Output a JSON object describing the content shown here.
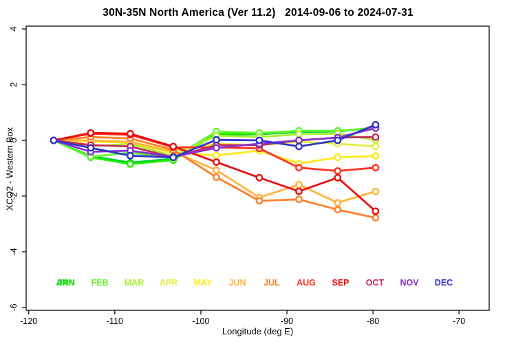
{
  "window": {
    "title": "30N-35N North America (Ver 11.2)   2014-09-06 to 2024-07-31"
  },
  "chart_data": {
    "type": "line",
    "title": "30N-35N North America (Ver 11.2)   2014-09-06 to 2024-07-31",
    "xlabel": "Longitude (deg E)",
    "ylabel": "XCO2 - Western Box",
    "xlim": [
      -120.3,
      -66.5
    ],
    "ylim": [
      -6.1,
      4.1
    ],
    "x_ticks": [
      -120,
      -110,
      -100,
      -90,
      -80,
      -70
    ],
    "y_ticks": [
      -6,
      -4,
      -2,
      0,
      2,
      4
    ],
    "grid": false,
    "legend_position": "bottom-inside",
    "marker": "open-circle",
    "axis_color": "#1a1a1a",
    "x": [
      -117.1,
      -112.8,
      -108.2,
      -103.2,
      -98.2,
      -93.2,
      -88.6,
      -84.1,
      -79.7
    ],
    "series": [
      {
        "name": "ANN",
        "color": "#00CC33",
        "legend_slot": 0,
        "values": [
          0.0,
          -0.56,
          -0.8,
          -0.66,
          0.2,
          0.22,
          0.3,
          0.32,
          0.46
        ]
      },
      {
        "name": "JAN",
        "color": "#22EE00",
        "legend_slot": 0,
        "values": [
          0.0,
          -0.61,
          -0.85,
          -0.71,
          0.24,
          0.24,
          0.34,
          0.34,
          0.44
        ]
      },
      {
        "name": "FEB",
        "color": "#66F533",
        "legend_slot": 1,
        "values": [
          0.0,
          -0.59,
          -0.44,
          -0.63,
          0.32,
          0.27,
          0.34,
          0.34,
          0.44
        ]
      },
      {
        "name": "MAR",
        "color": "#AAEE33",
        "legend_slot": 2,
        "values": [
          0.0,
          -0.22,
          -0.12,
          -0.56,
          0.17,
          0.12,
          0.22,
          0.24,
          0.02
        ]
      },
      {
        "name": "APR",
        "color": "#E2EE44",
        "legend_slot": 3,
        "values": [
          0.0,
          -0.05,
          -0.07,
          -0.39,
          -0.12,
          -0.17,
          -0.05,
          -0.12,
          -0.22
        ]
      },
      {
        "name": "MAY",
        "color": "#FFE81A",
        "legend_slot": 4,
        "values": [
          0.0,
          -0.05,
          -0.07,
          -0.46,
          -0.54,
          -0.37,
          -0.83,
          -0.61,
          -0.56
        ]
      },
      {
        "name": "JUN",
        "color": "#FFB43C",
        "legend_slot": 5,
        "values": [
          0.0,
          0.0,
          -0.05,
          -0.41,
          -1.07,
          -2.05,
          -1.59,
          -2.24,
          -1.83
        ]
      },
      {
        "name": "JUL",
        "color": "#FF7F2A",
        "legend_slot": 6,
        "values": [
          0.0,
          0.12,
          0.07,
          -0.34,
          -1.32,
          -2.17,
          -2.12,
          -2.49,
          -2.78
        ]
      },
      {
        "name": "AUG",
        "color": "#FF3322",
        "legend_slot": 7,
        "values": [
          0.0,
          0.24,
          0.2,
          -0.25,
          -0.25,
          -0.29,
          -0.98,
          -1.1,
          -0.98
        ]
      },
      {
        "name": "SEP",
        "color": "#E81010",
        "legend_slot": 8,
        "values": [
          0.0,
          0.27,
          0.24,
          -0.22,
          -0.78,
          -1.34,
          -1.83,
          -1.34,
          -2.54
        ]
      },
      {
        "name": "OCT",
        "color": "#C42A5C",
        "legend_slot": 9,
        "values": [
          0.0,
          -0.17,
          -0.22,
          -0.61,
          -0.17,
          -0.17,
          0.0,
          0.1,
          0.12
        ]
      },
      {
        "name": "NOV",
        "color": "#8833CC",
        "legend_slot": 10,
        "values": [
          0.0,
          -0.41,
          -0.37,
          -0.59,
          -0.27,
          -0.12,
          0.0,
          0.1,
          0.44
        ]
      },
      {
        "name": "DEC",
        "color": "#3333CC",
        "legend_slot": 11,
        "values": [
          0.0,
          -0.27,
          -0.55,
          -0.61,
          0.02,
          0.0,
          -0.22,
          0.0,
          0.56
        ]
      }
    ]
  }
}
